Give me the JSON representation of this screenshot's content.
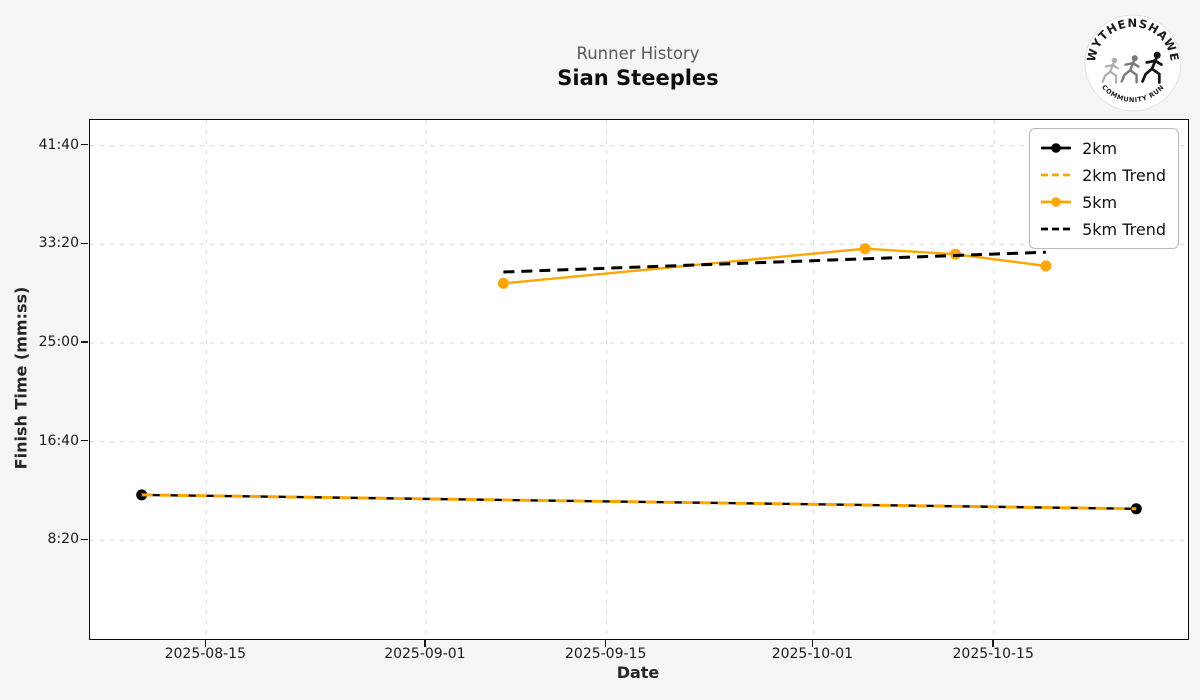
{
  "header": {
    "subtitle": "Runner History",
    "title": "Sian Steeples"
  },
  "logo": {
    "top_text": "WYTHENSHAWE",
    "bottom_text": "COMMUNITY RUN"
  },
  "colors": {
    "accent_orange": "#FFA500",
    "series_black": "#000000",
    "figure_background": "#f5f5f5",
    "plot_background": "#ffffff",
    "gridline": "#d8d8d8"
  },
  "chart_data": {
    "type": "line",
    "title": "Sian Steeples",
    "subtitle": "Runner History",
    "xlabel": "Date",
    "ylabel": "Finish Time (mm:ss)",
    "grid": true,
    "legend_position": "upper right",
    "x_range": [
      "2025-08-06",
      "2025-10-30"
    ],
    "y_range_seconds": [
      0,
      2630
    ],
    "x_ticks": [
      "2025-08-15",
      "2025-09-01",
      "2025-09-15",
      "2025-10-01",
      "2025-10-15"
    ],
    "y_ticks": [
      {
        "seconds": 2500,
        "label": "41:40"
      },
      {
        "seconds": 2000,
        "label": "33:20"
      },
      {
        "seconds": 1500,
        "label": "25:00"
      },
      {
        "seconds": 1000,
        "label": "16:40"
      },
      {
        "seconds": 500,
        "label": "8:20"
      }
    ],
    "series": [
      {
        "name": "2km",
        "color": "#000000",
        "style": "solid",
        "markers": true,
        "points": [
          {
            "date": "2025-08-10",
            "time": "12:10",
            "seconds": 730
          },
          {
            "date": "2025-10-26",
            "time": "11:00",
            "seconds": 660
          }
        ]
      },
      {
        "name": "2km Trend",
        "color": "#FFA500",
        "style": "dashed",
        "markers": false,
        "points": [
          {
            "date": "2025-08-10",
            "time": "12:10",
            "seconds": 730
          },
          {
            "date": "2025-10-26",
            "time": "11:00",
            "seconds": 660
          }
        ]
      },
      {
        "name": "5km",
        "color": "#FFA500",
        "style": "solid",
        "markers": true,
        "points": [
          {
            "date": "2025-09-07",
            "time": "30:02",
            "seconds": 1802
          },
          {
            "date": "2025-10-05",
            "time": "32:58",
            "seconds": 1978
          },
          {
            "date": "2025-10-12",
            "time": "32:30",
            "seconds": 1950
          },
          {
            "date": "2025-10-19",
            "time": "31:30",
            "seconds": 1890
          }
        ]
      },
      {
        "name": "5km Trend",
        "color": "#000000",
        "style": "dashed",
        "markers": false,
        "points": [
          {
            "date": "2025-09-07",
            "time": "31:00",
            "seconds": 1860
          },
          {
            "date": "2025-10-19",
            "time": "32:40",
            "seconds": 1960
          }
        ]
      }
    ],
    "legend": [
      {
        "label": "2km",
        "color": "#000000",
        "dash": false,
        "marker": true
      },
      {
        "label": "2km Trend",
        "color": "#FFA500",
        "dash": true,
        "marker": false
      },
      {
        "label": "5km",
        "color": "#FFA500",
        "dash": false,
        "marker": true
      },
      {
        "label": "5km Trend",
        "color": "#000000",
        "dash": true,
        "marker": false
      }
    ]
  }
}
